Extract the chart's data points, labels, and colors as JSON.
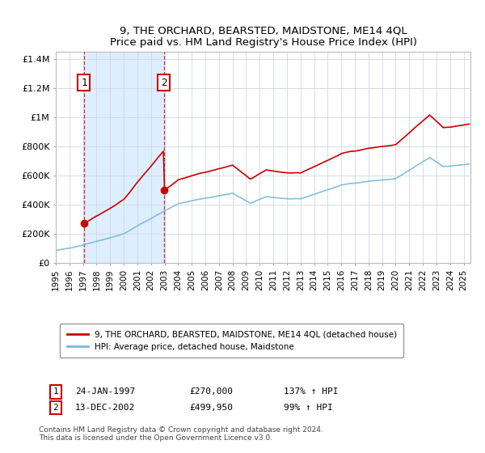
{
  "title": "9, THE ORCHARD, BEARSTED, MAIDSTONE, ME14 4QL",
  "subtitle": "Price paid vs. HM Land Registry's House Price Index (HPI)",
  "legend_line1": "9, THE ORCHARD, BEARSTED, MAIDSTONE, ME14 4QL (detached house)",
  "legend_line2": "HPI: Average price, detached house, Maidstone",
  "footer": "Contains HM Land Registry data © Crown copyright and database right 2024.\nThis data is licensed under the Open Government Licence v3.0.",
  "sale1_label": "1",
  "sale1_date": "24-JAN-1997",
  "sale1_price": "£270,000",
  "sale1_hpi": "137% ↑ HPI",
  "sale1_year": 1997.07,
  "sale1_value": 270000,
  "sale2_label": "2",
  "sale2_date": "13-DEC-2002",
  "sale2_price": "£499,950",
  "sale2_hpi": "99% ↑ HPI",
  "sale2_year": 2002.96,
  "sale2_value": 499950,
  "hpi_color": "#7ab8d9",
  "price_color": "#cc0000",
  "vline_color": "#cc0000",
  "shade_color": "#ddeeff",
  "ylim": [
    0,
    1450000
  ],
  "yticks": [
    0,
    200000,
    400000,
    600000,
    800000,
    1000000,
    1200000,
    1400000
  ],
  "ytick_labels": [
    "£0",
    "£200K",
    "£400K",
    "£600K",
    "£800K",
    "£1M",
    "£1.2M",
    "£1.4M"
  ],
  "xlim_start": 1995.0,
  "xlim_end": 2025.5,
  "xticks": [
    1995,
    1996,
    1997,
    1998,
    1999,
    2000,
    2001,
    2002,
    2003,
    2004,
    2005,
    2006,
    2007,
    2008,
    2009,
    2010,
    2011,
    2012,
    2013,
    2014,
    2015,
    2016,
    2017,
    2018,
    2019,
    2020,
    2021,
    2022,
    2023,
    2024,
    2025
  ],
  "background_color": "#ffffff",
  "grid_color": "#d0d8e0"
}
